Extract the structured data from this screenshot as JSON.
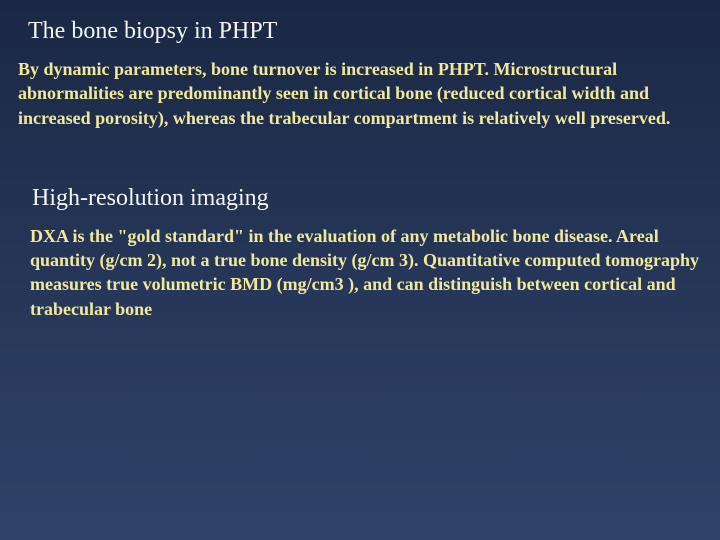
{
  "slide": {
    "background_gradient": [
      "#1a2845",
      "#253658",
      "#2f4268"
    ],
    "section1": {
      "heading": "The bone biopsy in PHPT",
      "heading_color": "#f5f5f0",
      "heading_fontsize": 24,
      "body": "By dynamic parameters, bone turnover is increased in PHPT.\n Microstructural abnormalities are predominantly seen in cortical bone (reduced cortical width and increased porosity), whereas the trabecular compartment is relatively well preserved.",
      "body_color": "#f2e89a",
      "body_fontsize": 18,
      "body_fontweight": "bold"
    },
    "section2": {
      "heading": "High-resolution imaging",
      "heading_color": "#f5f5f0",
      "heading_fontsize": 24,
      "body": "DXA is the \"gold standard\" in the evaluation of any metabolic bone disease. Areal quantity (g/cm 2), not a true bone density (g/cm 3).\n Quantitative computed tomography measures true volumetric BMD (mg/cm3 ), and can distinguish between cortical and trabecular bone",
      "body_color": "#f2e89a",
      "body_fontsize": 18,
      "body_fontweight": "bold"
    }
  }
}
